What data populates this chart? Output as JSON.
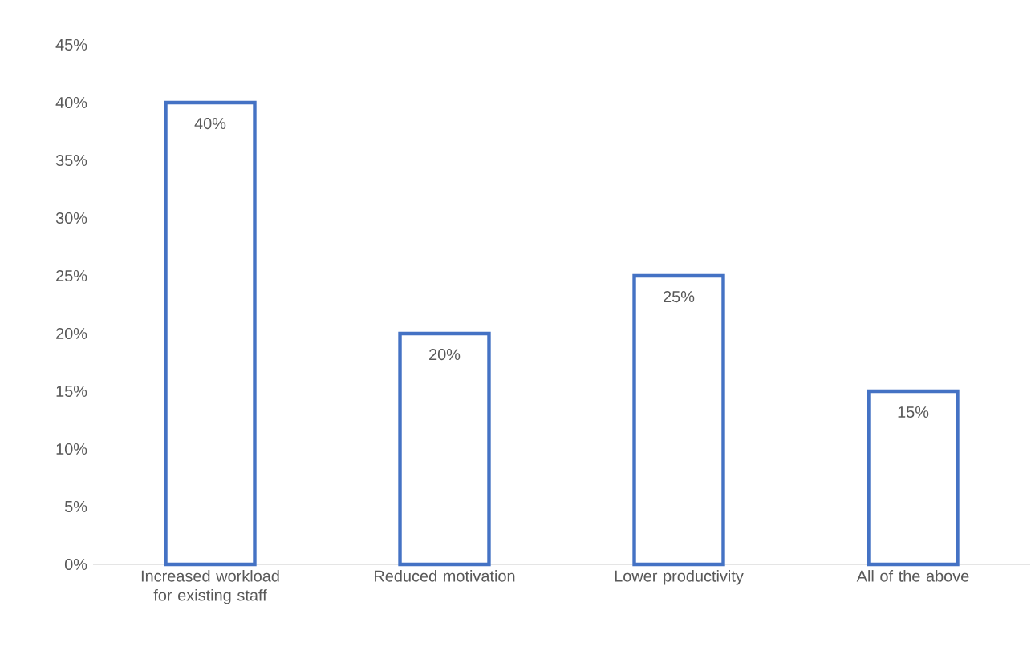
{
  "chart_data": {
    "type": "bar",
    "categories": [
      "Increased workload for existing staff",
      "Reduced motivation",
      "Lower productivity",
      "All of the above"
    ],
    "values": [
      40,
      20,
      25,
      15
    ],
    "value_labels": [
      "40%",
      "20%",
      "25%",
      "15%"
    ],
    "color": "#4472c4",
    "ylim": [
      0,
      45
    ],
    "yticks": [
      {
        "value": 0,
        "label": "0%"
      },
      {
        "value": 5,
        "label": "5%"
      },
      {
        "value": 10,
        "label": "10%"
      },
      {
        "value": 15,
        "label": "15%"
      },
      {
        "value": 20,
        "label": "20%"
      },
      {
        "value": 25,
        "label": "25%"
      },
      {
        "value": 30,
        "label": "30%"
      },
      {
        "value": 35,
        "label": "35%"
      },
      {
        "value": 40,
        "label": "40%"
      },
      {
        "value": 45,
        "label": "45%"
      }
    ],
    "grid": false
  }
}
